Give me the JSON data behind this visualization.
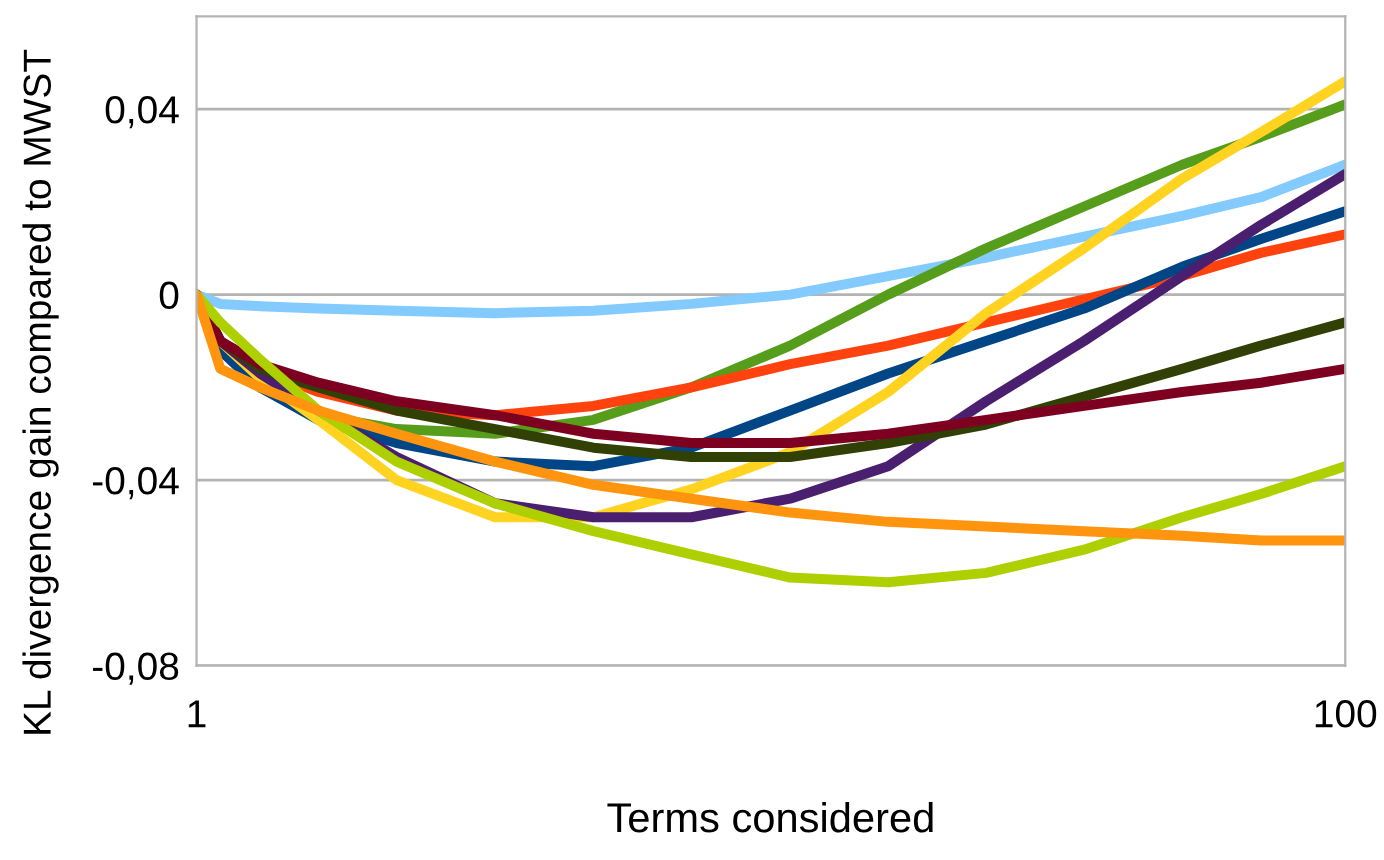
{
  "chart_data": {
    "type": "line",
    "xlabel": "Terms considered",
    "ylabel": "KL divergence gain compared to MWST",
    "x": [
      1,
      1.1,
      1.29,
      1.63,
      2.23,
      3.31,
      4.91,
      7.27,
      10.8,
      16.0,
      23.7,
      35.1,
      52.0,
      71.3,
      100
    ],
    "series": [
      {
        "color": "#83caff",
        "values": [
          0,
          -0.002,
          -0.0025,
          -0.003,
          -0.0035,
          -0.004,
          -0.0035,
          -0.002,
          0,
          0.004,
          0.008,
          0.0125,
          0.017,
          0.021,
          0.028
        ]
      },
      {
        "color": "#579d1c",
        "values": [
          0,
          -0.01,
          -0.02,
          -0.026,
          -0.029,
          -0.03,
          -0.027,
          -0.02,
          -0.011,
          0.0,
          0.01,
          0.019,
          0.028,
          0.034,
          0.041
        ]
      },
      {
        "color": "#ff420e",
        "values": [
          null,
          null,
          -0.016,
          -0.021,
          -0.025,
          -0.026,
          -0.024,
          -0.02,
          -0.015,
          -0.011,
          -0.006,
          -0.001,
          0.004,
          0.009,
          0.013
        ]
      },
      {
        "color": "#004586",
        "values": [
          0,
          -0.012,
          -0.02,
          -0.027,
          -0.032,
          -0.036,
          -0.037,
          -0.033,
          -0.025,
          -0.017,
          -0.01,
          -0.003,
          0.006,
          0.012,
          0.018
        ]
      },
      {
        "color": "#ffd320",
        "values": [
          0,
          -0.01,
          -0.018,
          -0.027,
          -0.04,
          -0.048,
          -0.048,
          -0.042,
          -0.034,
          -0.021,
          -0.004,
          0.01,
          0.025,
          0.035,
          0.046
        ]
      },
      {
        "color": "#4b1f6f",
        "values": [
          0,
          -0.01,
          -0.017,
          -0.025,
          -0.035,
          -0.045,
          -0.048,
          -0.048,
          -0.044,
          -0.037,
          -0.023,
          -0.01,
          0.004,
          0.015,
          0.026
        ]
      },
      {
        "color": "#314004",
        "values": [
          0,
          -0.01,
          -0.016,
          -0.02,
          -0.025,
          -0.029,
          -0.033,
          -0.035,
          -0.035,
          -0.032,
          -0.028,
          -0.022,
          -0.016,
          -0.011,
          -0.006
        ]
      },
      {
        "color": "#7e0021",
        "values": [
          0,
          -0.01,
          -0.015,
          -0.019,
          -0.023,
          -0.026,
          -0.03,
          -0.032,
          -0.032,
          -0.03,
          -0.027,
          -0.024,
          -0.021,
          -0.019,
          -0.016
        ]
      },
      {
        "color": "#aecf00",
        "values": [
          0,
          -0.006,
          -0.014,
          -0.025,
          -0.036,
          -0.045,
          -0.051,
          -0.056,
          -0.061,
          -0.062,
          -0.06,
          -0.055,
          -0.048,
          -0.043,
          -0.037
        ]
      },
      {
        "color": "#ff950e",
        "values": [
          0,
          -0.016,
          -0.02,
          -0.025,
          -0.03,
          -0.036,
          -0.041,
          -0.044,
          -0.047,
          -0.049,
          -0.05,
          -0.051,
          -0.052,
          -0.053,
          -0.053
        ]
      }
    ],
    "log": "x",
    "xlim": [
      1,
      100
    ],
    "xticks": [
      1,
      100
    ],
    "ylim": [
      -0.08,
      0.06
    ],
    "yticks": [
      {
        "value": -0.08,
        "label": "-0,08"
      },
      {
        "value": -0.04,
        "label": "-0,04"
      },
      0,
      {
        "value": 0.04,
        "label": "0,04"
      }
    ],
    "grid": "y",
    "legend": false
  }
}
